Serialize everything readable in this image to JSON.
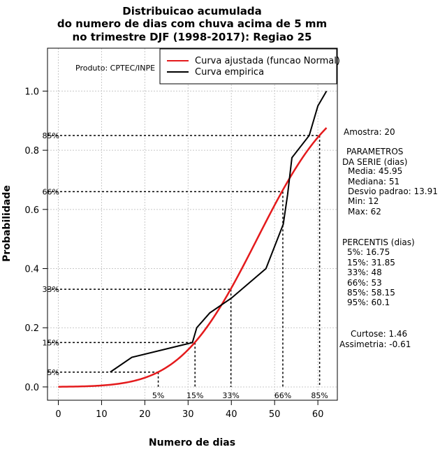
{
  "chart_data": {
    "type": "line",
    "title_lines": [
      "Distribuicao acumulada",
      "do numero de dias com chuva acima de 5 mm",
      "no trimestre DJF (1998-2017): Regiao 25"
    ],
    "xlabel": "Numero de dias",
    "ylabel": "Probabilidade",
    "xlim": [
      -2.5,
      64.5
    ],
    "ylim": [
      -0.045,
      1.145
    ],
    "x_ticks": [
      0,
      10,
      20,
      30,
      40,
      50,
      60
    ],
    "y_ticks": [
      0.0,
      0.2,
      0.4,
      0.6,
      0.8,
      1.0
    ],
    "y_tick_labels": [
      "0.0",
      "0.2",
      "0.4",
      "0.6",
      "0.8",
      "1.0"
    ],
    "grid": true,
    "legend_position": "top-right",
    "product_label": "Produto: CPTEC/INPE",
    "series": [
      {
        "name": "Curva ajustada (funcao Normal)",
        "color": "#e41a1c",
        "kind": "normal_cdf",
        "mean": 45.95,
        "sd": 13.91,
        "x_range": [
          0,
          62
        ]
      },
      {
        "name": "Curva empirica",
        "color": "#000000",
        "x": [
          12,
          17,
          31,
          32,
          35,
          40,
          48,
          52,
          53,
          54,
          58,
          60,
          62
        ],
        "y": [
          0.05,
          0.1,
          0.15,
          0.2,
          0.25,
          0.3,
          0.4,
          0.55,
          0.65,
          0.775,
          0.85,
          0.95,
          1.0
        ]
      }
    ],
    "percentile_markers": [
      {
        "label": "5%",
        "x": 23.1,
        "y": 0.05
      },
      {
        "label": "15%",
        "x": 31.6,
        "y": 0.15
      },
      {
        "label": "33%",
        "x": 39.9,
        "y": 0.33
      },
      {
        "label": "66%",
        "x": 51.9,
        "y": 0.66
      },
      {
        "label": "85%",
        "x": 60.4,
        "y": 0.85
      }
    ],
    "stats_panel": {
      "sample": "Amostra: 20",
      "params_header": [
        "PARAMETROS",
        "DA SERIE (dias)"
      ],
      "params": [
        "Media: 45.95",
        "Mediana: 51",
        "Desvio padrao: 13.91",
        "Min: 12",
        "Max: 62"
      ],
      "percentis_header": "PERCENTIS (dias)",
      "percentis": [
        "5%: 16.75",
        "15%: 31.85",
        "33%: 48",
        "66%: 53",
        "85%: 58.15",
        "95%: 60.1"
      ],
      "curtose": "Curtose: 1.46",
      "assimetria": "Assimetria: -0.61"
    }
  }
}
